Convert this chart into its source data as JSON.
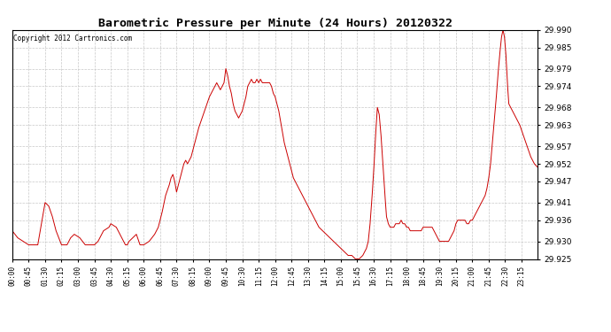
{
  "title": "Barometric Pressure per Minute (24 Hours) 20120322",
  "copyright": "Copyright 2012 Cartronics.com",
  "line_color": "#cc0000",
  "background_color": "#ffffff",
  "grid_color": "#c8c8c8",
  "ylim": [
    29.925,
    29.99
  ],
  "yticks": [
    29.925,
    29.93,
    29.936,
    29.941,
    29.947,
    29.952,
    29.957,
    29.963,
    29.968,
    29.974,
    29.979,
    29.985,
    29.99
  ],
  "xtick_labels": [
    "00:00",
    "00:45",
    "01:30",
    "02:15",
    "03:00",
    "03:45",
    "04:30",
    "05:15",
    "06:00",
    "06:45",
    "07:30",
    "08:15",
    "09:00",
    "09:45",
    "10:30",
    "11:15",
    "12:00",
    "12:45",
    "13:30",
    "14:15",
    "15:00",
    "15:45",
    "16:30",
    "17:15",
    "18:00",
    "18:45",
    "19:30",
    "20:15",
    "21:00",
    "21:45",
    "22:30",
    "23:15"
  ],
  "keypoints": [
    [
      0,
      29.933
    ],
    [
      15,
      29.931
    ],
    [
      30,
      29.93
    ],
    [
      45,
      29.929
    ],
    [
      55,
      29.929
    ],
    [
      70,
      29.929
    ],
    [
      90,
      29.941
    ],
    [
      100,
      29.94
    ],
    [
      110,
      29.937
    ],
    [
      120,
      29.933
    ],
    [
      135,
      29.929
    ],
    [
      150,
      29.929
    ],
    [
      160,
      29.931
    ],
    [
      170,
      29.932
    ],
    [
      185,
      29.931
    ],
    [
      200,
      29.929
    ],
    [
      215,
      29.929
    ],
    [
      225,
      29.929
    ],
    [
      235,
      29.93
    ],
    [
      250,
      29.933
    ],
    [
      265,
      29.934
    ],
    [
      270,
      29.935
    ],
    [
      285,
      29.934
    ],
    [
      300,
      29.931
    ],
    [
      310,
      29.929
    ],
    [
      315,
      29.929
    ],
    [
      320,
      29.93
    ],
    [
      330,
      29.931
    ],
    [
      340,
      29.932
    ],
    [
      350,
      29.929
    ],
    [
      360,
      29.929
    ],
    [
      375,
      29.93
    ],
    [
      390,
      29.932
    ],
    [
      400,
      29.934
    ],
    [
      410,
      29.938
    ],
    [
      420,
      29.943
    ],
    [
      430,
      29.946
    ],
    [
      435,
      29.948
    ],
    [
      440,
      29.949
    ],
    [
      445,
      29.947
    ],
    [
      450,
      29.944
    ],
    [
      455,
      29.946
    ],
    [
      460,
      29.948
    ],
    [
      465,
      29.95
    ],
    [
      470,
      29.952
    ],
    [
      475,
      29.953
    ],
    [
      480,
      29.952
    ],
    [
      490,
      29.954
    ],
    [
      500,
      29.958
    ],
    [
      510,
      29.962
    ],
    [
      520,
      29.965
    ],
    [
      530,
      29.968
    ],
    [
      540,
      29.971
    ],
    [
      550,
      29.973
    ],
    [
      555,
      29.974
    ],
    [
      560,
      29.975
    ],
    [
      565,
      29.974
    ],
    [
      570,
      29.973
    ],
    [
      575,
      29.974
    ],
    [
      580,
      29.975
    ],
    [
      585,
      29.979
    ],
    [
      590,
      29.977
    ],
    [
      595,
      29.974
    ],
    [
      600,
      29.972
    ],
    [
      605,
      29.969
    ],
    [
      610,
      29.967
    ],
    [
      615,
      29.966
    ],
    [
      620,
      29.965
    ],
    [
      625,
      29.966
    ],
    [
      630,
      29.967
    ],
    [
      635,
      29.969
    ],
    [
      640,
      29.971
    ],
    [
      645,
      29.974
    ],
    [
      650,
      29.975
    ],
    [
      655,
      29.976
    ],
    [
      660,
      29.975
    ],
    [
      665,
      29.975
    ],
    [
      670,
      29.976
    ],
    [
      675,
      29.975
    ],
    [
      680,
      29.976
    ],
    [
      685,
      29.975
    ],
    [
      690,
      29.975
    ],
    [
      695,
      29.975
    ],
    [
      700,
      29.975
    ],
    [
      705,
      29.975
    ],
    [
      710,
      29.974
    ],
    [
      715,
      29.972
    ],
    [
      720,
      29.971
    ],
    [
      725,
      29.969
    ],
    [
      730,
      29.967
    ],
    [
      735,
      29.964
    ],
    [
      740,
      29.961
    ],
    [
      745,
      29.958
    ],
    [
      750,
      29.956
    ],
    [
      755,
      29.954
    ],
    [
      760,
      29.952
    ],
    [
      765,
      29.95
    ],
    [
      770,
      29.948
    ],
    [
      775,
      29.947
    ],
    [
      780,
      29.946
    ],
    [
      785,
      29.945
    ],
    [
      790,
      29.944
    ],
    [
      795,
      29.943
    ],
    [
      800,
      29.942
    ],
    [
      810,
      29.94
    ],
    [
      820,
      29.938
    ],
    [
      830,
      29.936
    ],
    [
      840,
      29.934
    ],
    [
      850,
      29.933
    ],
    [
      860,
      29.932
    ],
    [
      870,
      29.931
    ],
    [
      880,
      29.93
    ],
    [
      890,
      29.929
    ],
    [
      900,
      29.928
    ],
    [
      910,
      29.927
    ],
    [
      920,
      29.926
    ],
    [
      930,
      29.926
    ],
    [
      940,
      29.925
    ],
    [
      950,
      29.925
    ],
    [
      960,
      29.926
    ],
    [
      970,
      29.928
    ],
    [
      975,
      29.93
    ],
    [
      980,
      29.935
    ],
    [
      985,
      29.942
    ],
    [
      990,
      29.95
    ],
    [
      995,
      29.96
    ],
    [
      1000,
      29.968
    ],
    [
      1005,
      29.966
    ],
    [
      1010,
      29.96
    ],
    [
      1015,
      29.952
    ],
    [
      1020,
      29.944
    ],
    [
      1025,
      29.937
    ],
    [
      1030,
      29.935
    ],
    [
      1035,
      29.934
    ],
    [
      1040,
      29.934
    ],
    [
      1045,
      29.934
    ],
    [
      1050,
      29.935
    ],
    [
      1055,
      29.935
    ],
    [
      1060,
      29.935
    ],
    [
      1065,
      29.936
    ],
    [
      1070,
      29.935
    ],
    [
      1075,
      29.935
    ],
    [
      1080,
      29.934
    ],
    [
      1085,
      29.934
    ],
    [
      1090,
      29.933
    ],
    [
      1095,
      29.933
    ],
    [
      1100,
      29.933
    ],
    [
      1105,
      29.933
    ],
    [
      1110,
      29.933
    ],
    [
      1115,
      29.933
    ],
    [
      1120,
      29.933
    ],
    [
      1125,
      29.934
    ],
    [
      1130,
      29.934
    ],
    [
      1135,
      29.934
    ],
    [
      1140,
      29.934
    ],
    [
      1145,
      29.934
    ],
    [
      1150,
      29.934
    ],
    [
      1155,
      29.933
    ],
    [
      1160,
      29.932
    ],
    [
      1165,
      29.931
    ],
    [
      1170,
      29.93
    ],
    [
      1175,
      29.93
    ],
    [
      1180,
      29.93
    ],
    [
      1185,
      29.93
    ],
    [
      1195,
      29.93
    ],
    [
      1200,
      29.931
    ],
    [
      1205,
      29.932
    ],
    [
      1210,
      29.933
    ],
    [
      1215,
      29.935
    ],
    [
      1220,
      29.936
    ],
    [
      1225,
      29.936
    ],
    [
      1230,
      29.936
    ],
    [
      1235,
      29.936
    ],
    [
      1240,
      29.936
    ],
    [
      1245,
      29.935
    ],
    [
      1250,
      29.935
    ],
    [
      1255,
      29.936
    ],
    [
      1260,
      29.936
    ],
    [
      1265,
      29.937
    ],
    [
      1270,
      29.938
    ],
    [
      1275,
      29.939
    ],
    [
      1280,
      29.94
    ],
    [
      1285,
      29.941
    ],
    [
      1290,
      29.942
    ],
    [
      1295,
      29.943
    ],
    [
      1300,
      29.945
    ],
    [
      1305,
      29.948
    ],
    [
      1310,
      29.952
    ],
    [
      1315,
      29.958
    ],
    [
      1320,
      29.964
    ],
    [
      1325,
      29.97
    ],
    [
      1330,
      29.977
    ],
    [
      1335,
      29.983
    ],
    [
      1340,
      29.988
    ],
    [
      1344,
      29.99
    ],
    [
      1348,
      29.988
    ],
    [
      1352,
      29.983
    ],
    [
      1356,
      29.975
    ],
    [
      1360,
      29.969
    ],
    [
      1365,
      29.968
    ],
    [
      1370,
      29.967
    ],
    [
      1375,
      29.966
    ],
    [
      1380,
      29.965
    ],
    [
      1390,
      29.963
    ],
    [
      1400,
      29.96
    ],
    [
      1410,
      29.957
    ],
    [
      1420,
      29.954
    ],
    [
      1430,
      29.952
    ],
    [
      1439,
      29.951
    ]
  ]
}
